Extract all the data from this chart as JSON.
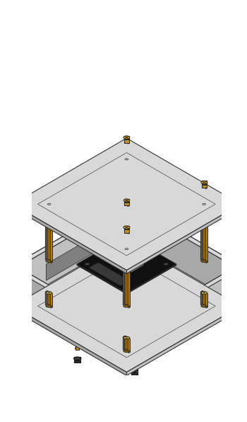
{
  "background_color": "#ffffff",
  "plate_top": "#d8d8d8",
  "plate_left": "#a8a8a8",
  "plate_right": "#c0c0c0",
  "plate_inner": "#cccccc",
  "gold_top": "#f0c030",
  "gold_left": "#906000",
  "gold_right": "#c89010",
  "dark_top": "#444444",
  "dark_left": "#1a1a1a",
  "dark_right": "#2a2a2a",
  "board_color": "#111111",
  "outline": "#2a2a2a",
  "lw": 0.75,
  "S": 11,
  "ox": 175,
  "oy": 320
}
